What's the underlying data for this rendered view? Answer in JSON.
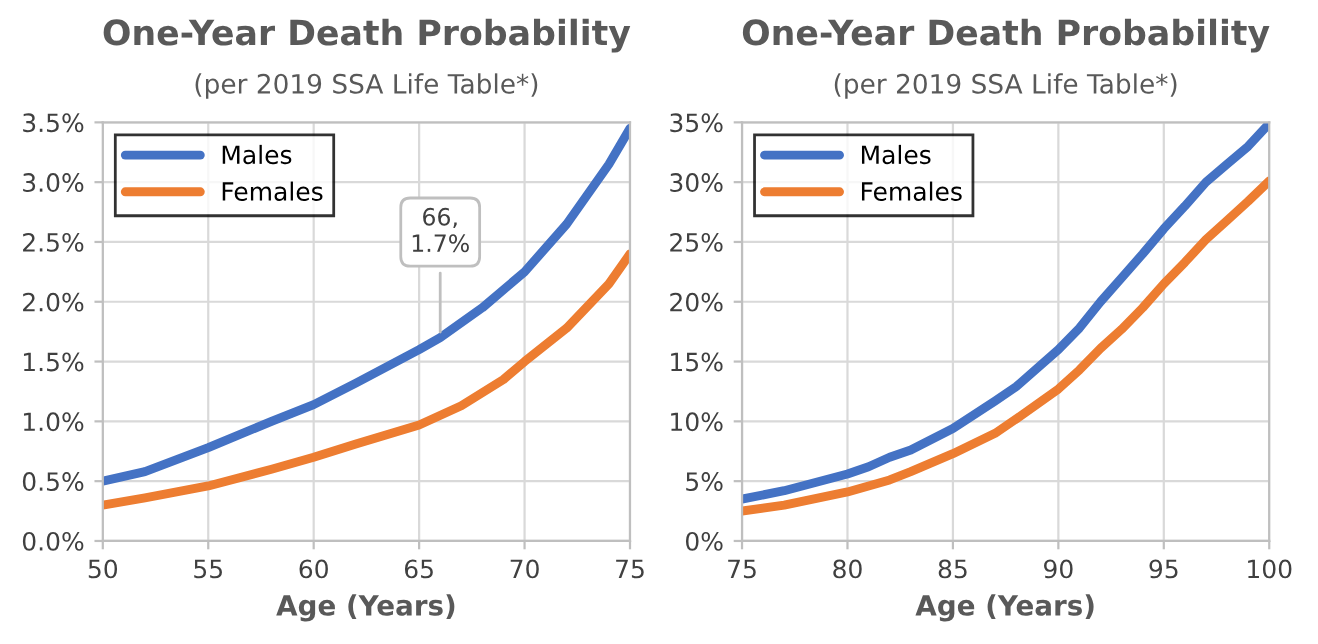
{
  "chart_data": [
    {
      "type": "line",
      "title": "One-Year Death Probability",
      "subtitle": "(per 2019 SSA Life Table*)",
      "xlabel": "Age (Years)",
      "xlim": [
        50,
        75
      ],
      "xticks": [
        50,
        55,
        60,
        65,
        70,
        75
      ],
      "ylim": [
        0,
        3.5
      ],
      "yticks": [
        {
          "value": 0,
          "label": "0.0%"
        },
        {
          "value": 0.5,
          "label": "0.5%"
        },
        {
          "value": 1.0,
          "label": "1.0%"
        },
        {
          "value": 1.5,
          "label": "1.5%"
        },
        {
          "value": 2.0,
          "label": "2.0%"
        },
        {
          "value": 2.5,
          "label": "2.5%"
        },
        {
          "value": 3.0,
          "label": "3.0%"
        },
        {
          "value": 3.5,
          "label": "3.5%"
        }
      ],
      "grid": true,
      "legend": "top left",
      "marker": "none",
      "line_style": "solid",
      "annotations": [
        {
          "text": "66,\n1.7%",
          "x": 66,
          "y": 1.7
        }
      ],
      "series": [
        {
          "name": "Males",
          "color": "#4472c4",
          "x": [
            50,
            52,
            55,
            58,
            60,
            62,
            65,
            66,
            68,
            70,
            72,
            74,
            75
          ],
          "values": [
            0.5,
            0.58,
            0.78,
            1.0,
            1.14,
            1.32,
            1.6,
            1.7,
            1.95,
            2.25,
            2.65,
            3.15,
            3.45
          ]
        },
        {
          "name": "Females",
          "color": "#ed7d31",
          "x": [
            50,
            52,
            55,
            58,
            60,
            62,
            65,
            67,
            69,
            70,
            72,
            74,
            75
          ],
          "values": [
            0.3,
            0.36,
            0.46,
            0.6,
            0.7,
            0.81,
            0.97,
            1.13,
            1.35,
            1.5,
            1.78,
            2.15,
            2.4
          ]
        }
      ]
    },
    {
      "type": "line",
      "title": "One-Year Death Probability",
      "subtitle": "(per 2019 SSA Life Table*)",
      "xlabel": "Age (Years)",
      "xlim": [
        75,
        100
      ],
      "xticks": [
        75,
        80,
        85,
        90,
        95,
        100
      ],
      "ylim": [
        0,
        35
      ],
      "yticks": [
        {
          "value": 0,
          "label": "0%"
        },
        {
          "value": 5,
          "label": "5%"
        },
        {
          "value": 10,
          "label": "10%"
        },
        {
          "value": 15,
          "label": "15%"
        },
        {
          "value": 20,
          "label": "20%"
        },
        {
          "value": 25,
          "label": "25%"
        },
        {
          "value": 30,
          "label": "30%"
        },
        {
          "value": 35,
          "label": "35%"
        }
      ],
      "grid": true,
      "legend": "top left",
      "marker": "none",
      "line_style": "solid",
      "series": [
        {
          "name": "Males",
          "color": "#4472c4",
          "x": [
            75,
            77,
            80,
            81,
            82,
            83,
            85,
            87,
            88,
            90,
            91,
            92,
            93,
            94,
            95,
            96,
            97,
            98,
            99,
            100
          ],
          "values": [
            3.5,
            4.2,
            5.6,
            6.2,
            7.0,
            7.6,
            9.4,
            11.7,
            12.9,
            16.0,
            17.8,
            20.0,
            22.0,
            24.0,
            26.1,
            28.0,
            30.0,
            31.5,
            33.0,
            34.9
          ]
        },
        {
          "name": "Females",
          "color": "#ed7d31",
          "x": [
            75,
            77,
            80,
            82,
            83,
            85,
            87,
            88,
            90,
            91,
            92,
            93,
            94,
            95,
            96,
            97,
            98,
            99,
            100
          ],
          "values": [
            2.5,
            3.0,
            4.1,
            5.1,
            5.8,
            7.3,
            9.0,
            10.2,
            12.7,
            14.3,
            16.1,
            17.7,
            19.5,
            21.5,
            23.3,
            25.2,
            26.8,
            28.4,
            30.1
          ]
        }
      ]
    }
  ]
}
